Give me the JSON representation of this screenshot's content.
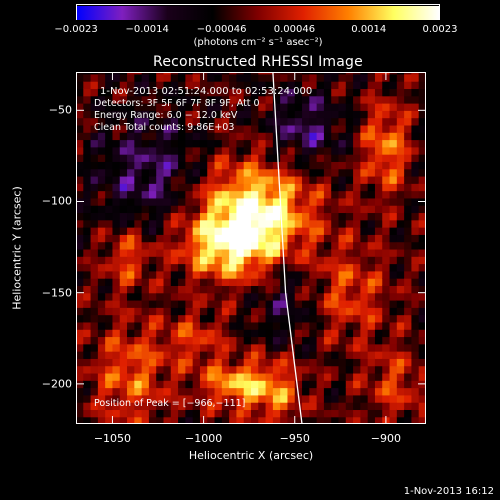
{
  "chart_data": {
    "type": "heatmap",
    "title": "Reconstructed RHESSI Image",
    "xlabel": "Heliocentric X (arcsec)",
    "ylabel": "Heliocentric Y (arcsec)",
    "xlim": [
      -1070,
      -878
    ],
    "ylim": [
      -222,
      -29
    ],
    "x_ticks": [
      {
        "value": -1050,
        "label": "−1050"
      },
      {
        "value": -1000,
        "label": "−1000"
      },
      {
        "value": -950,
        "label": "−950"
      },
      {
        "value": -900,
        "label": "−900"
      }
    ],
    "y_ticks": [
      {
        "value": -50,
        "label": "−50"
      },
      {
        "value": -100,
        "label": "−100"
      },
      {
        "value": -150,
        "label": "−150"
      },
      {
        "value": -200,
        "label": "−200"
      }
    ],
    "colorbar": {
      "min": -0.0023,
      "max": 0.0023,
      "ticks": [
        {
          "value": -0.0023,
          "label": "−0.0023"
        },
        {
          "value": -0.0014,
          "label": "−0.0014"
        },
        {
          "value": -0.00046,
          "label": "−0.00046"
        },
        {
          "value": 0.00046,
          "label": "0.00046"
        },
        {
          "value": 0.0014,
          "label": "0.0014"
        },
        {
          "value": 0.0023,
          "label": "0.0023"
        }
      ],
      "unit": "(photons cm⁻² s⁻¹ asec⁻²)",
      "colormap": [
        "#0000ff",
        "#7f1fbf",
        "#1a001a",
        "#000000",
        "#800000",
        "#e02000",
        "#ff8000",
        "#ffff60",
        "#ffffff"
      ]
    },
    "annotations": {
      "time_range": "1-Nov-2013 02:51:24.000 to 02:53:24.000",
      "detectors": "Detectors: 3F 5F 6F 7F 8F 9F, Att 0",
      "energy_range": "Energy Range: 6.0 − 12.0 keV",
      "clean_counts": "Clean     Total counts: 9.86E+03",
      "peak_position": "Position of Peak = [−966,−111]"
    },
    "peak": {
      "x": -966,
      "y": -111
    },
    "limb": [
      {
        "x": -962,
        "y": -29
      },
      {
        "x": -955,
        "y": -150
      },
      {
        "x": -946,
        "y": -222
      }
    ],
    "sources": [
      {
        "x": -972,
        "y": -108,
        "amp": 0.0026,
        "sx": 22,
        "sy": 20
      },
      {
        "x": -990,
        "y": -125,
        "amp": 0.0013,
        "sx": 18,
        "sy": 12
      },
      {
        "x": -1042,
        "y": -130,
        "amp": 0.0011,
        "sx": 9,
        "sy": 12
      },
      {
        "x": -1040,
        "y": -195,
        "amp": 0.0012,
        "sx": 15,
        "sy": 20
      },
      {
        "x": -982,
        "y": -200,
        "amp": 0.0016,
        "sx": 14,
        "sy": 9
      },
      {
        "x": -1005,
        "y": -175,
        "amp": 0.0009,
        "sx": 12,
        "sy": 10
      },
      {
        "x": -960,
        "y": -205,
        "amp": 0.0011,
        "sx": 11,
        "sy": 14
      },
      {
        "x": -900,
        "y": -70,
        "amp": 0.0014,
        "sx": 9,
        "sy": 18
      },
      {
        "x": -920,
        "y": -150,
        "amp": 0.001,
        "sx": 15,
        "sy": 18
      },
      {
        "x": -895,
        "y": -200,
        "amp": 0.0009,
        "sx": 12,
        "sy": 15
      },
      {
        "x": -1030,
        "y": -85,
        "amp": -0.001,
        "sx": 20,
        "sy": 22
      },
      {
        "x": -945,
        "y": -60,
        "amp": -0.0011,
        "sx": 14,
        "sy": 14
      },
      {
        "x": -955,
        "y": -150,
        "amp": -0.0008,
        "sx": 12,
        "sy": 20
      }
    ]
  },
  "footer": {
    "date": "1-Nov-2013 16:12"
  }
}
